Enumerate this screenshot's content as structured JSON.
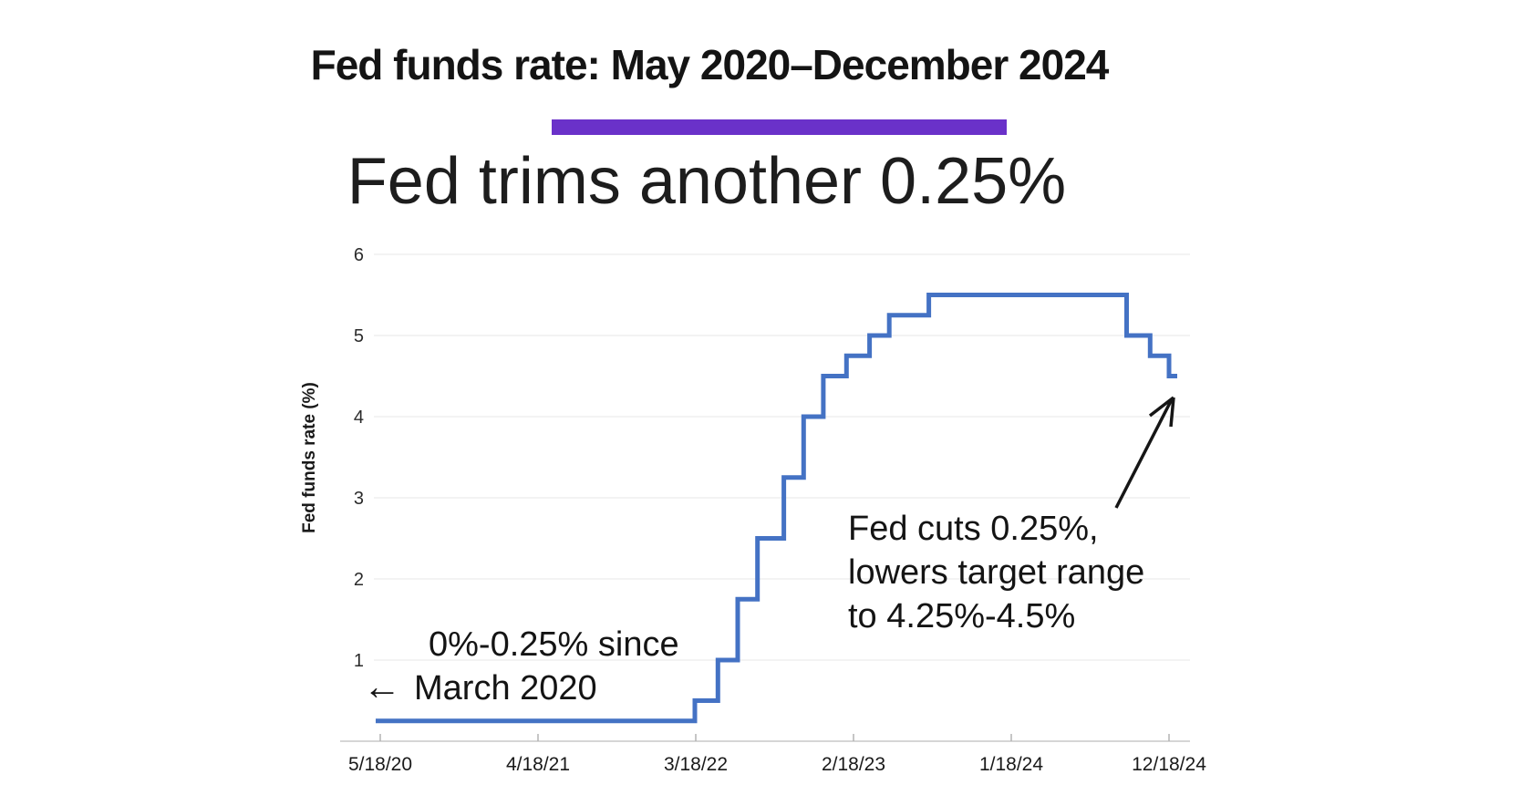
{
  "page": {
    "kicker": "Fed funds rate: May 2020–December 2024",
    "headline": "Fed trims another 0.25%",
    "accent_color": "#6a31c9"
  },
  "chart_data": {
    "type": "line",
    "subtype": "step",
    "title": "Fed trims another 0.25%",
    "xlabel": "",
    "ylabel": "Fed funds rate (%)",
    "ylim": [
      0,
      6
    ],
    "y_ticks": [
      1,
      2,
      3,
      4,
      5,
      6
    ],
    "x_tick_labels": [
      "5/18/20",
      "4/18/21",
      "3/18/22",
      "2/18/23",
      "1/18/24",
      "12/18/24"
    ],
    "x_domain": [
      "2020-05-18",
      "2024-12-28"
    ],
    "grid": true,
    "legend": false,
    "line_color": "#4472c4",
    "series": [
      {
        "name": "Fed funds rate (%)",
        "steps": [
          {
            "date": "2020-05-18",
            "rate": 0.25
          },
          {
            "date": "2022-03-17",
            "rate": 0.5
          },
          {
            "date": "2022-05-05",
            "rate": 1.0
          },
          {
            "date": "2022-06-16",
            "rate": 1.75
          },
          {
            "date": "2022-07-28",
            "rate": 2.5
          },
          {
            "date": "2022-09-22",
            "rate": 3.25
          },
          {
            "date": "2022-11-03",
            "rate": 4.0
          },
          {
            "date": "2022-12-15",
            "rate": 4.5
          },
          {
            "date": "2023-02-02",
            "rate": 4.75
          },
          {
            "date": "2023-03-23",
            "rate": 5.0
          },
          {
            "date": "2023-05-04",
            "rate": 5.25
          },
          {
            "date": "2023-07-27",
            "rate": 5.5
          },
          {
            "date": "2024-09-19",
            "rate": 5.0
          },
          {
            "date": "2024-11-08",
            "rate": 4.75
          },
          {
            "date": "2024-12-18",
            "rate": 4.5
          }
        ]
      }
    ],
    "annotations": [
      {
        "text_lines": [
          "0%-0.25% since",
          "March 2020"
        ],
        "arrow_glyph": "←",
        "arrow": "points-left-at-flat-segment"
      },
      {
        "text_lines": [
          "Fed cuts 0.25%,",
          "lowers target range",
          "to 4.25%-4.5%"
        ],
        "arrow": "points-up-right-at-line-end"
      }
    ]
  }
}
